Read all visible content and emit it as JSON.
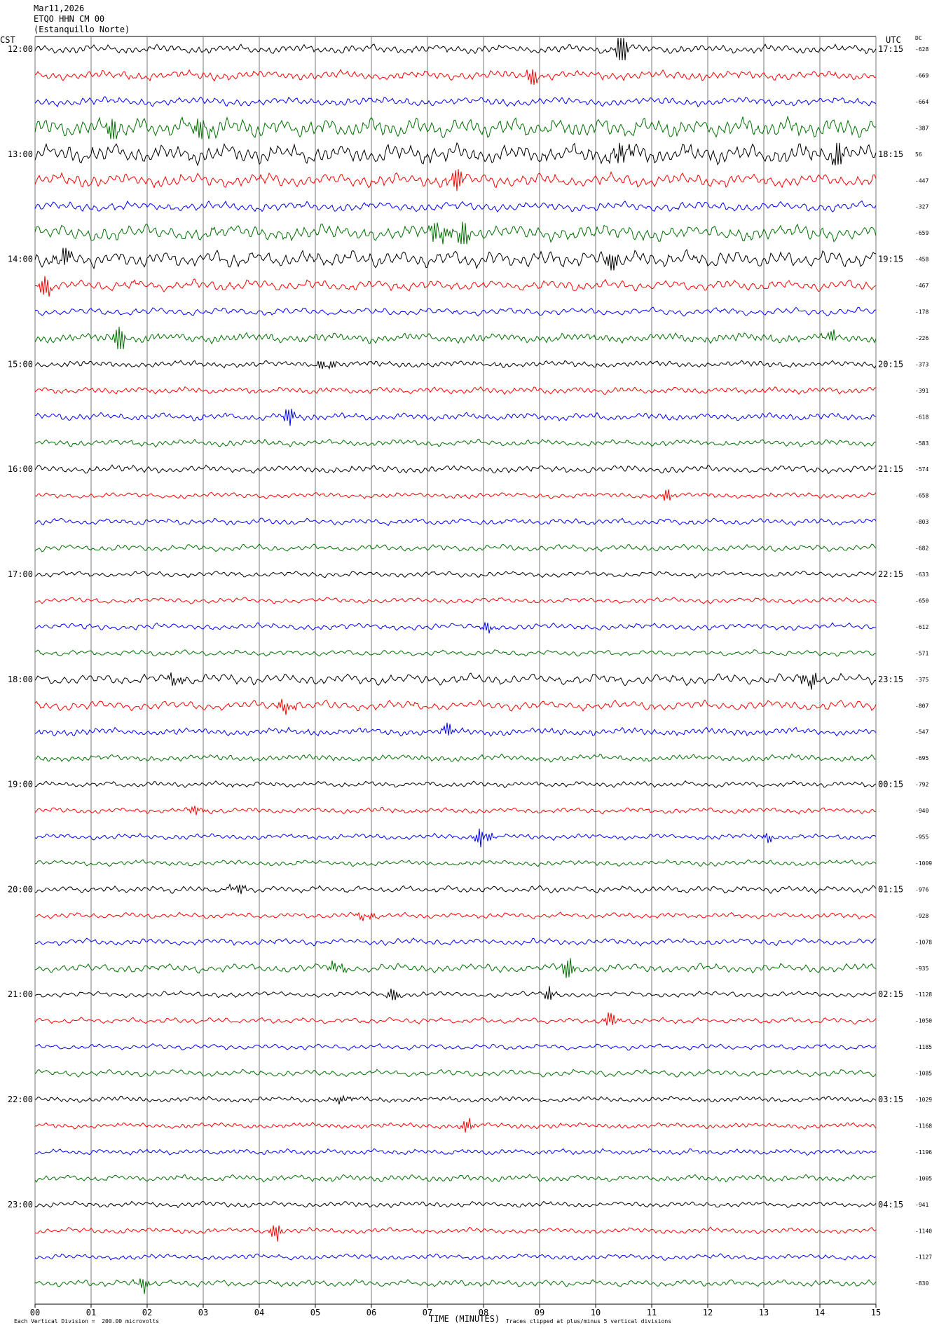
{
  "header": {
    "date": "Mar11,2026",
    "station": "ETQO HHN CM 00",
    "site": "(Estanquillo Norte)"
  },
  "labels": {
    "left_timezone": "CST",
    "right_timezone": "UTC",
    "dc_label": "DC",
    "x_axis_title": "TIME (MINUTES)",
    "scale_note": "Each Vertical Division =  200.00 microvolts",
    "clip_note": "Traces clipped at plus/minus 5 vertical divisions"
  },
  "chart_data": {
    "type": "line",
    "title": "",
    "xlabel": "TIME (MINUTES)",
    "ylabel": "",
    "xlim": [
      0,
      15
    ],
    "x_tick_labels": [
      "00",
      "01",
      "02",
      "03",
      "04",
      "05",
      "06",
      "07",
      "08",
      "09",
      "10",
      "11",
      "12",
      "13",
      "14",
      "15"
    ],
    "grid": "vertical lines at every minute",
    "trace_colors": [
      "#000000",
      "#ff0000",
      "#0000ff",
      "#007000"
    ],
    "row_count": 48,
    "minutes_per_row": 15,
    "left_time_labels": [
      "12:00",
      "13:00",
      "14:00",
      "15:00",
      "16:00",
      "17:00",
      "18:00",
      "19:00",
      "20:00",
      "21:00",
      "22:00",
      "23:00"
    ],
    "right_time_labels": [
      "17:15",
      "18:15",
      "19:15",
      "20:15",
      "21:15",
      "22:15",
      "23:15",
      "00:15",
      "01:15",
      "02:15",
      "03:15",
      "04:15"
    ],
    "dc_offsets": [
      "-628",
      "-669",
      "-664",
      "-387",
      "56",
      "-447",
      "-327",
      "-659",
      "-458",
      "-467",
      "-178",
      "-226",
      "-373",
      "-391",
      "-618",
      "-583",
      "-574",
      "-658",
      "-803",
      "-682",
      "-633",
      "-650",
      "-612",
      "-571",
      "-375",
      "-807",
      "-547",
      "-695",
      "-792",
      "-940",
      "-955",
      "-1009",
      "-976",
      "-928",
      "-1078",
      "-935",
      "-1128",
      "-1050",
      "-1185",
      "-1085",
      "-1029",
      "-1168",
      "-1196",
      "-1005",
      "-941",
      "-1140",
      "-1127",
      "-830"
    ],
    "trace_activity": [
      {
        "row": 0,
        "amplitude": 0.9,
        "events": [
          {
            "minute": 10.45,
            "size": 3.2
          }
        ]
      },
      {
        "row": 1,
        "amplitude": 1.0,
        "events": [
          {
            "minute": 8.9,
            "size": 1.2
          }
        ]
      },
      {
        "row": 2,
        "amplitude": 0.9,
        "events": []
      },
      {
        "row": 3,
        "amplitude": 2.0,
        "events": [
          {
            "minute": 1.4,
            "size": 2
          },
          {
            "minute": 3.0,
            "size": 2
          }
        ]
      },
      {
        "row": 4,
        "amplitude": 2.0,
        "events": [
          {
            "minute": 10.5,
            "size": 2
          },
          {
            "minute": 14.3,
            "size": 2
          }
        ]
      },
      {
        "row": 5,
        "amplitude": 1.4,
        "events": [
          {
            "minute": 7.5,
            "size": 2
          }
        ]
      },
      {
        "row": 6,
        "amplitude": 1.0,
        "events": []
      },
      {
        "row": 7,
        "amplitude": 1.6,
        "events": [
          {
            "minute": 7.2,
            "size": 2.5
          },
          {
            "minute": 7.6,
            "size": 2.5
          }
        ]
      },
      {
        "row": 8,
        "amplitude": 1.7,
        "events": [
          {
            "minute": 0.5,
            "size": 2
          },
          {
            "minute": 10.3,
            "size": 2
          }
        ]
      },
      {
        "row": 9,
        "amplitude": 1.1,
        "events": [
          {
            "minute": 0.2,
            "size": 1.5
          }
        ]
      },
      {
        "row": 10,
        "amplitude": 0.8,
        "events": []
      },
      {
        "row": 11,
        "amplitude": 1.0,
        "events": [
          {
            "minute": 1.5,
            "size": 2
          },
          {
            "minute": 14.2,
            "size": 1
          }
        ]
      },
      {
        "row": 12,
        "amplitude": 0.7,
        "events": [
          {
            "minute": 5.2,
            "size": 1.2
          }
        ]
      },
      {
        "row": 13,
        "amplitude": 0.7,
        "events": []
      },
      {
        "row": 14,
        "amplitude": 0.8,
        "events": [
          {
            "minute": 4.5,
            "size": 1.2
          }
        ]
      },
      {
        "row": 15,
        "amplitude": 0.7,
        "events": []
      },
      {
        "row": 16,
        "amplitude": 0.8,
        "events": []
      },
      {
        "row": 17,
        "amplitude": 0.6,
        "events": [
          {
            "minute": 11.3,
            "size": 0.8
          }
        ]
      },
      {
        "row": 18,
        "amplitude": 0.7,
        "events": []
      },
      {
        "row": 19,
        "amplitude": 0.7,
        "events": []
      },
      {
        "row": 20,
        "amplitude": 0.6,
        "events": []
      },
      {
        "row": 21,
        "amplitude": 0.6,
        "events": []
      },
      {
        "row": 22,
        "amplitude": 0.7,
        "events": [
          {
            "minute": 8.1,
            "size": 0.8
          }
        ]
      },
      {
        "row": 23,
        "amplitude": 0.6,
        "events": []
      },
      {
        "row": 24,
        "amplitude": 1.1,
        "events": [
          {
            "minute": 2.5,
            "size": 1.5
          },
          {
            "minute": 13.8,
            "size": 1.5
          }
        ]
      },
      {
        "row": 25,
        "amplitude": 1.0,
        "events": [
          {
            "minute": 4.5,
            "size": 1.5
          }
        ]
      },
      {
        "row": 26,
        "amplitude": 0.8,
        "events": [
          {
            "minute": 7.4,
            "size": 1
          }
        ]
      },
      {
        "row": 27,
        "amplitude": 0.7,
        "events": []
      },
      {
        "row": 28,
        "amplitude": 0.6,
        "events": []
      },
      {
        "row": 29,
        "amplitude": 0.6,
        "events": [
          {
            "minute": 2.9,
            "size": 0.8
          }
        ]
      },
      {
        "row": 30,
        "amplitude": 0.6,
        "events": [
          {
            "minute": 8.0,
            "size": 2
          },
          {
            "minute": 13.1,
            "size": 0.8
          }
        ]
      },
      {
        "row": 31,
        "amplitude": 0.6,
        "events": []
      },
      {
        "row": 32,
        "amplitude": 0.7,
        "events": [
          {
            "minute": 3.6,
            "size": 1
          }
        ]
      },
      {
        "row": 33,
        "amplitude": 0.6,
        "events": [
          {
            "minute": 5.9,
            "size": 0.9
          }
        ]
      },
      {
        "row": 34,
        "amplitude": 0.7,
        "events": []
      },
      {
        "row": 35,
        "amplitude": 0.9,
        "events": [
          {
            "minute": 5.4,
            "size": 1.3
          },
          {
            "minute": 9.5,
            "size": 1.5
          }
        ]
      },
      {
        "row": 36,
        "amplitude": 0.6,
        "events": [
          {
            "minute": 6.4,
            "size": 0.9
          },
          {
            "minute": 9.2,
            "size": 1
          }
        ]
      },
      {
        "row": 37,
        "amplitude": 0.6,
        "events": [
          {
            "minute": 10.3,
            "size": 1.2
          }
        ]
      },
      {
        "row": 38,
        "amplitude": 0.6,
        "events": []
      },
      {
        "row": 39,
        "amplitude": 0.7,
        "events": []
      },
      {
        "row": 40,
        "amplitude": 0.6,
        "events": [
          {
            "minute": 5.5,
            "size": 0.8
          }
        ]
      },
      {
        "row": 41,
        "amplitude": 0.6,
        "events": [
          {
            "minute": 7.7,
            "size": 1
          }
        ]
      },
      {
        "row": 42,
        "amplitude": 0.6,
        "events": []
      },
      {
        "row": 43,
        "amplitude": 0.7,
        "events": []
      },
      {
        "row": 44,
        "amplitude": 0.6,
        "events": []
      },
      {
        "row": 45,
        "amplitude": 0.6,
        "events": [
          {
            "minute": 4.3,
            "size": 1.2
          }
        ]
      },
      {
        "row": 46,
        "amplitude": 0.6,
        "events": []
      },
      {
        "row": 47,
        "amplitude": 0.7,
        "events": [
          {
            "minute": 1.9,
            "size": 1
          }
        ]
      }
    ]
  }
}
